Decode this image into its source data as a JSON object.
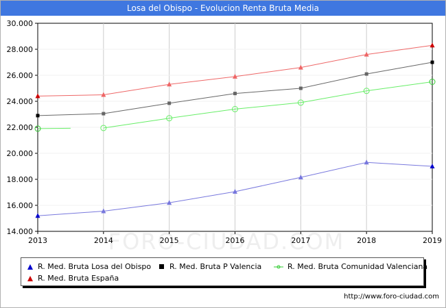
{
  "watermark": "FORO-CIUDAD.COM",
  "source_url": "http://www.foro-ciudad.com",
  "chart_data": {
    "type": "line",
    "title": "Losa del Obispo - Evolucion Renta Bruta Media",
    "xlabel": "",
    "ylabel": "",
    "x": [
      2013,
      2014,
      2015,
      2016,
      2017,
      2018,
      2019
    ],
    "ylim": [
      14000,
      30000
    ],
    "yticks": [
      14000,
      16000,
      18000,
      20000,
      22000,
      24000,
      26000,
      28000,
      30000
    ],
    "ytick_labels": [
      "14.000",
      "16.000",
      "18.000",
      "20.000",
      "22.000",
      "24.000",
      "26.000",
      "28.000",
      "30.000"
    ],
    "grid": "vertical",
    "legend_position": "bottom",
    "series": [
      {
        "name": "R. Med. Bruta Losa del Obispo",
        "color": "#7777dd",
        "end_color": "#0000cc",
        "marker": "triangle",
        "values": [
          15200,
          15550,
          16200,
          17050,
          18150,
          19300,
          19000
        ]
      },
      {
        "name": "R. Med. Bruta P Valencia",
        "color": "#666666",
        "end_color": "#000000",
        "marker": "square",
        "values": [
          22900,
          23050,
          23850,
          24600,
          25000,
          26100,
          27000
        ]
      },
      {
        "name": "R. Med. Bruta Comunidad Valenciana",
        "color": "#66ee66",
        "end_color": "#33cc33",
        "marker": "circle",
        "values": [
          21900,
          21950,
          22700,
          23400,
          23900,
          24800,
          25500
        ],
        "gap_after_first": true
      },
      {
        "name": "R. Med. Bruta España",
        "color": "#ee6666",
        "end_color": "#cc0000",
        "marker": "triangle",
        "values": [
          24400,
          24500,
          25300,
          25900,
          26600,
          27600,
          28300
        ]
      }
    ]
  }
}
